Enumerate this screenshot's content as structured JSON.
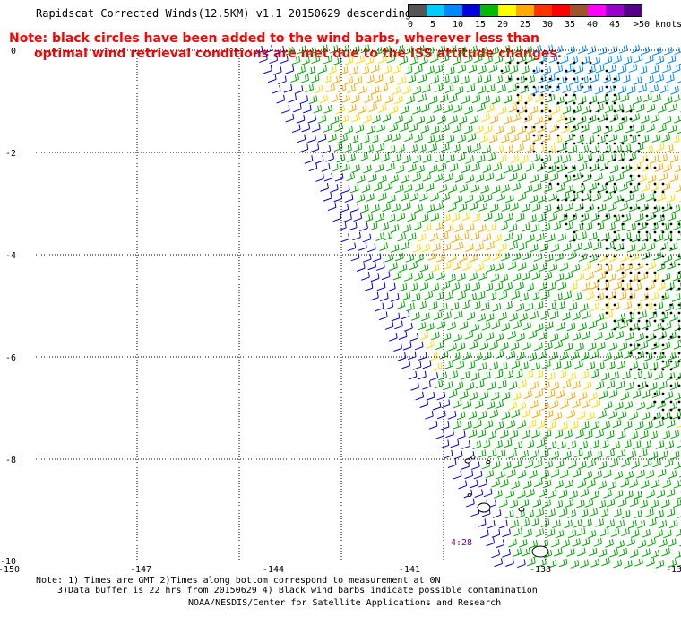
{
  "title": "Rapidscat Corrected Winds(12.5KM) v1.1 20150629 descending",
  "note": {
    "line1": "Note: black circles have been added to the wind barbs, wherever less than",
    "line2": "optimal wind retrieval conditions are met due to the ISS attitude changes."
  },
  "legend": {
    "colors": [
      "#555555",
      "#00ccff",
      "#0088ff",
      "#0000dd",
      "#00bb00",
      "#ffff00",
      "#ffaa00",
      "#ff3300",
      "#ff0000",
      "#a0522d",
      "#ff00ff",
      "#9900cc",
      "#550088"
    ],
    "labels": [
      "0",
      "5",
      "10",
      "15",
      "20",
      "25",
      "30",
      "35",
      "40",
      "45",
      ">50 knots"
    ]
  },
  "axes": {
    "lat_labels": [
      "0",
      "-2",
      "-4",
      "-6",
      "-8",
      "-10"
    ],
    "lon_labels": [
      "-150",
      "-147",
      "-144",
      "-141",
      "-138",
      "-13"
    ]
  },
  "time_label": "4:28",
  "footer": {
    "line1": "Note: 1) Times are GMT 2)Times along bottom correspond to measurement at 0N",
    "line2": "3)Data buffer is 22 hrs from 20150629 4) Black wind barbs indicate possible contamination",
    "line3": "NOAA/NESDIS/Center for Satellite Applications and Research"
  }
}
